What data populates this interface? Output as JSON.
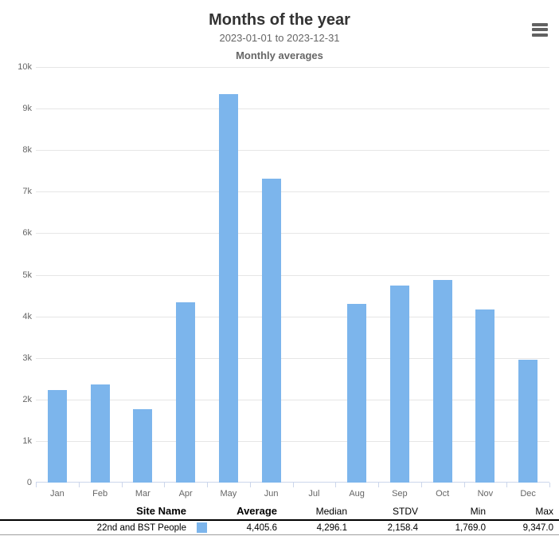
{
  "header": {
    "title": "Months of the year",
    "subtitle_range": "2023-01-01 to 2023-12-31",
    "subtitle_caption": "Monthly averages"
  },
  "colors": {
    "bar": "#7cb5ec",
    "title": "#333333",
    "subtitle": "#666666",
    "grid": "#e6e6e6",
    "axis": "#ccd6eb",
    "axis_label": "#666666",
    "menu_icon": "#616161"
  },
  "chart_data": {
    "type": "bar",
    "title": "Months of the year",
    "subtitle": "2023-01-01 to 2023-12-31",
    "caption": "Monthly averages",
    "categories": [
      "Jan",
      "Feb",
      "Mar",
      "Apr",
      "May",
      "Jun",
      "Jul",
      "Aug",
      "Sep",
      "Oct",
      "Nov",
      "Dec"
    ],
    "series": [
      {
        "name": "22nd and BST People",
        "values": [
          2230,
          2360,
          1769,
          4340,
          9347,
          7310,
          null,
          4296,
          4740,
          4880,
          4170,
          2960
        ]
      }
    ],
    "xlabel": "",
    "ylabel": "",
    "ylim": [
      0,
      10000
    ],
    "ytick_interval": 1000,
    "ytick_labels": [
      "0",
      "1k",
      "2k",
      "3k",
      "4k",
      "5k",
      "6k",
      "7k",
      "8k",
      "9k",
      "10k"
    ],
    "grid": true,
    "legend_position": "none"
  },
  "table": {
    "headers": [
      "Site Name",
      "Average",
      "Median",
      "STDV",
      "Min",
      "Max"
    ],
    "rows": [
      {
        "site_name": "22nd and BST People",
        "swatch_color": "#7cb5ec",
        "average": "4,405.6",
        "median": "4,296.1",
        "stdv": "2,158.4",
        "min": "1,769.0",
        "max": "9,347.0"
      }
    ]
  }
}
